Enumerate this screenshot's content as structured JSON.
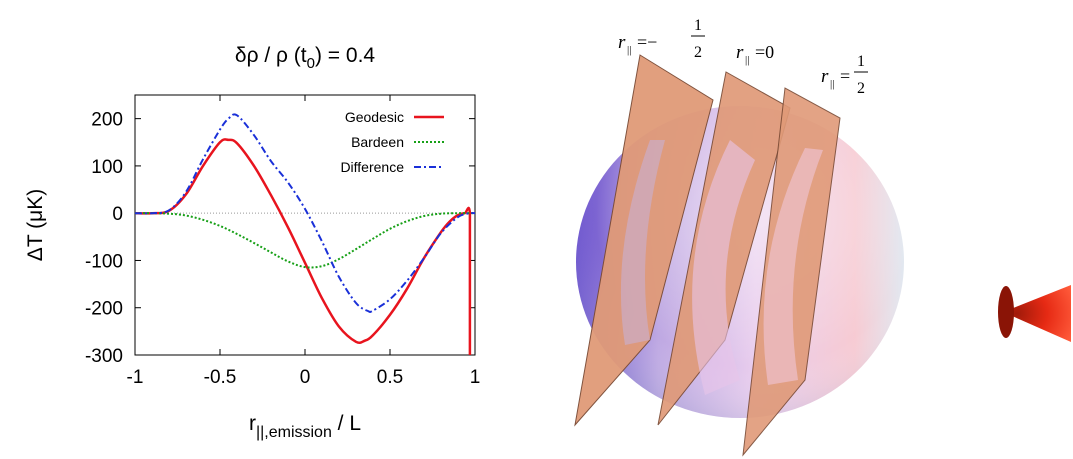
{
  "chart_data": {
    "type": "line",
    "title_main": "δρ / ρ (t",
    "title_sub": "0",
    "title_tail": ") = 0.4",
    "xlabel_main": "r",
    "xlabel_sub": "||,emission",
    "xlabel_tail": " / L",
    "ylabel": "ΔT (μK)",
    "xlim": [
      -1,
      1
    ],
    "ylim": [
      -300,
      250
    ],
    "xticks": [
      -1,
      -0.5,
      0,
      0.5,
      1
    ],
    "xtick_labels": [
      "-1",
      "-0.5",
      "0",
      "0.5",
      "1"
    ],
    "yticks": [
      -300,
      -200,
      -100,
      0,
      100,
      200
    ],
    "ytick_labels": [
      "-300",
      "-200",
      "-100",
      "0",
      "100",
      "200"
    ],
    "grid": false,
    "zero_line": true,
    "legend_position": "top-right",
    "series": [
      {
        "name": "Geodesic",
        "color": "#e8141e",
        "style": "solid",
        "x": [
          -1,
          -0.9,
          -0.8,
          -0.7,
          -0.6,
          -0.5,
          -0.45,
          -0.4,
          -0.3,
          -0.2,
          -0.1,
          0,
          0.1,
          0.2,
          0.3,
          0.35,
          0.4,
          0.5,
          0.6,
          0.7,
          0.8,
          0.85,
          0.9,
          0.94,
          0.97,
          0.97,
          0.97
        ],
        "y": [
          0,
          0,
          5,
          40,
          100,
          150,
          155,
          148,
          100,
          38,
          -30,
          -105,
          -180,
          -240,
          -272,
          -270,
          -258,
          -215,
          -160,
          -95,
          -40,
          -18,
          -4,
          0,
          0,
          -150,
          -300
        ]
      },
      {
        "name": "Bardeen",
        "color": "#17a017",
        "style": "dotted",
        "x": [
          -1,
          -0.9,
          -0.8,
          -0.7,
          -0.6,
          -0.5,
          -0.4,
          -0.3,
          -0.2,
          -0.1,
          0,
          0.1,
          0.2,
          0.3,
          0.4,
          0.5,
          0.6,
          0.7,
          0.8,
          0.9,
          1
        ],
        "y": [
          0,
          0,
          -1,
          -5,
          -14,
          -27,
          -44,
          -63,
          -83,
          -102,
          -114,
          -112,
          -97,
          -76,
          -54,
          -33,
          -17,
          -6,
          -1,
          0,
          0
        ]
      },
      {
        "name": "Difference",
        "color": "#1a30d8",
        "style": "dash-dot",
        "x": [
          -1,
          -0.9,
          -0.8,
          -0.7,
          -0.6,
          -0.5,
          -0.45,
          -0.4,
          -0.3,
          -0.2,
          -0.1,
          0,
          0.1,
          0.2,
          0.3,
          0.37,
          0.4,
          0.5,
          0.6,
          0.7,
          0.8,
          0.9,
          0.97,
          1
        ],
        "y": [
          0,
          0,
          6,
          45,
          114,
          177,
          200,
          207,
          165,
          110,
          65,
          9,
          -60,
          -135,
          -190,
          -207,
          -206,
          -182,
          -143,
          -95,
          -42,
          -8,
          0,
          0
        ]
      }
    ]
  },
  "scene": {
    "planes": [
      {
        "label_var": "r",
        "label_sub": "||",
        "label_eq": "=−",
        "label_num": "1",
        "label_den": "2"
      },
      {
        "label_var": "r",
        "label_sub": "||",
        "label_eq": "=0",
        "label_num": "",
        "label_den": ""
      },
      {
        "label_var": "r",
        "label_sub": "||",
        "label_eq": "=",
        "label_num": "1",
        "label_den": "2"
      }
    ],
    "colors": {
      "plane": "#e09a78",
      "plane_edge": "#7a4a34",
      "sphere_left": "#6a4fd0",
      "sphere_mid": "#d6b8e8",
      "sphere_right": "#f2c4cc",
      "cone": "#e62a14"
    }
  }
}
